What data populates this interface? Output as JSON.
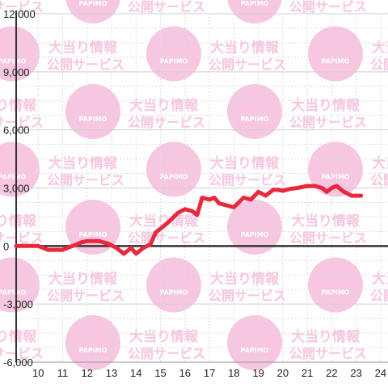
{
  "watermark": {
    "logo_text": "PAPIMO",
    "line1": "大当り情報",
    "line2": "公開サービス"
  },
  "colors": {
    "line": "#e8283c",
    "axis": "#333333",
    "grid_major": "#cfcfcf",
    "grid_minor": "#dddddd",
    "watermark": "#f7c6e0"
  },
  "chart_data": {
    "type": "line",
    "title": "",
    "xlabel": "",
    "ylabel": "",
    "xlim": [
      9.1,
      24.3
    ],
    "ylim": [
      -6000,
      12000
    ],
    "x_ticks": [
      10,
      11,
      12,
      13,
      14,
      15,
      16,
      17,
      18,
      19,
      20,
      21,
      22,
      23,
      24
    ],
    "y_ticks": [
      -6000,
      -3000,
      0,
      3000,
      6000,
      9000,
      12000
    ],
    "y_tick_labels": [
      "-6,000",
      "-3,000",
      "0",
      "3,000",
      "6,000",
      "9,000",
      "12,000"
    ],
    "grid": true,
    "series": [
      {
        "x": [
          9.1,
          10.0,
          10.4,
          11.0,
          11.4,
          11.8,
          12.0,
          12.5,
          12.9,
          13.2,
          13.5,
          13.8,
          14.0,
          14.3,
          14.6,
          14.8,
          15.0,
          15.3,
          15.7,
          16.0,
          16.3,
          16.5,
          16.7,
          17.0,
          17.2,
          17.4,
          17.7,
          18.0,
          18.4,
          18.7,
          19.0,
          19.3,
          19.6,
          19.8,
          20.0,
          20.3,
          20.6,
          21.0,
          21.3,
          21.6,
          21.8,
          22.0,
          22.2,
          22.5,
          22.8,
          23.0,
          23.2
        ],
        "y": [
          0,
          0,
          -200,
          -200,
          0,
          200,
          250,
          250,
          100,
          -100,
          -400,
          -100,
          -400,
          -100,
          100,
          700,
          900,
          1200,
          1700,
          1900,
          1800,
          1600,
          2500,
          2400,
          2500,
          2200,
          2100,
          2000,
          2500,
          2400,
          2800,
          2600,
          2900,
          2900,
          2850,
          2950,
          3000,
          3100,
          3100,
          3000,
          2800,
          3000,
          3100,
          2800,
          2600,
          2600,
          2600
        ]
      }
    ]
  }
}
